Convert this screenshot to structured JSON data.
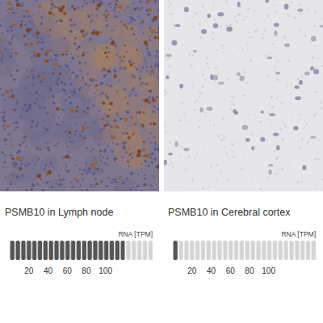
{
  "chart_data": [
    {
      "type": "bar",
      "title": "PSMB10 in Lymph node",
      "x_label": "RNA [TPM]",
      "orientation": "horizontal",
      "categories": [
        null
      ],
      "values": [
        120
      ],
      "color": "#555555",
      "xlim": [
        0,
        150
      ],
      "xticks": [
        20,
        40,
        60,
        80,
        100
      ],
      "tick_labels": "x",
      "grid": false
    },
    {
      "type": "bar",
      "title": "PSMB10 in Cerebral cortex",
      "x_label": "RNA [TPM]",
      "orientation": "horizontal",
      "categories": [
        null
      ],
      "values": [
        5
      ],
      "color": "#555555",
      "xlim": [
        0,
        150
      ],
      "xticks": [
        20,
        40,
        60,
        80,
        100
      ],
      "tick_labels": "x",
      "grid": false
    }
  ]
}
